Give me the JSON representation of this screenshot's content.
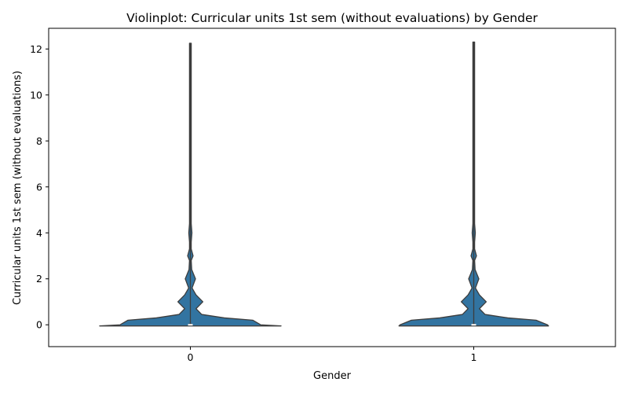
{
  "chart_data": {
    "type": "violin",
    "title": "Violinplot: Curricular units 1st sem (without evaluations) by Gender",
    "xlabel": "Gender",
    "ylabel": "Curricular units 1st sem (without evaluations)",
    "categories": [
      "0",
      "1"
    ],
    "ylim": [
      -0.95,
      12.9
    ],
    "yticks": [
      "0",
      "2",
      "4",
      "6",
      "8",
      "10",
      "12"
    ],
    "grid": false,
    "violin_color": "#3274a1",
    "edge_color": "#3d3d3d",
    "median_color": "#ffffff",
    "series": [
      {
        "category": "0",
        "min": -0.05,
        "max": 12.25,
        "median": 0,
        "q1": 0,
        "q3": 0,
        "density": [
          [
            -0.05,
            0.8
          ],
          [
            0,
            0.62
          ],
          [
            0.2,
            0.55
          ],
          [
            0.3,
            0.3
          ],
          [
            0.45,
            0.1
          ],
          [
            0.7,
            0.05
          ],
          [
            1.0,
            0.11
          ],
          [
            1.3,
            0.05
          ],
          [
            1.6,
            0.015
          ],
          [
            2.0,
            0.045
          ],
          [
            2.4,
            0.012
          ],
          [
            2.8,
            0.005
          ],
          [
            3.0,
            0.024
          ],
          [
            3.3,
            0.005
          ],
          [
            3.6,
            0.004
          ],
          [
            4.0,
            0.014
          ],
          [
            4.4,
            0.003
          ],
          [
            5.0,
            0.004
          ],
          [
            6.0,
            0.003
          ],
          [
            7.0,
            0.002
          ],
          [
            8.0,
            0.002
          ],
          [
            9.0,
            0.002
          ],
          [
            10.0,
            0.002
          ],
          [
            11.0,
            0.002
          ],
          [
            12.0,
            0.0015
          ],
          [
            12.25,
            0.001
          ]
        ]
      },
      {
        "category": "1",
        "min": -0.05,
        "max": 12.3,
        "median": 0,
        "q1": 0,
        "q3": 0,
        "density": [
          [
            -0.05,
            0.66
          ],
          [
            0,
            0.65
          ],
          [
            0.2,
            0.55
          ],
          [
            0.3,
            0.3
          ],
          [
            0.45,
            0.1
          ],
          [
            0.7,
            0.05
          ],
          [
            1.0,
            0.11
          ],
          [
            1.3,
            0.05
          ],
          [
            1.6,
            0.015
          ],
          [
            2.0,
            0.045
          ],
          [
            2.4,
            0.012
          ],
          [
            2.8,
            0.005
          ],
          [
            3.0,
            0.024
          ],
          [
            3.3,
            0.005
          ],
          [
            3.6,
            0.004
          ],
          [
            4.0,
            0.014
          ],
          [
            4.4,
            0.003
          ],
          [
            5.0,
            0.004
          ],
          [
            6.0,
            0.003
          ],
          [
            7.0,
            0.002
          ],
          [
            8.0,
            0.002
          ],
          [
            9.0,
            0.002
          ],
          [
            10.0,
            0.002
          ],
          [
            11.0,
            0.002
          ],
          [
            12.0,
            0.0015
          ],
          [
            12.3,
            0.001
          ]
        ]
      }
    ]
  }
}
